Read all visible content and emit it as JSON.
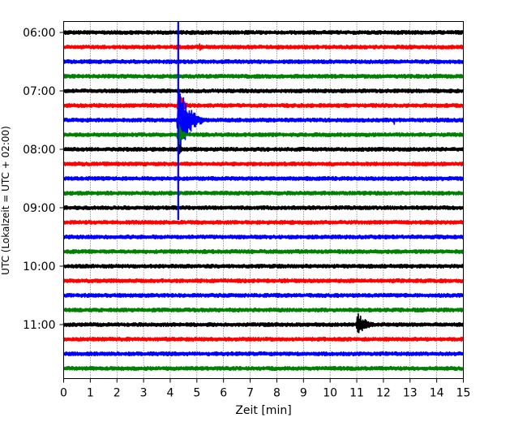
{
  "chart_data": {
    "type": "line",
    "title": "",
    "xlabel": "Zeit  [min]",
    "ylabel": "UTC (Lokalzeit = UTC + 02:00)",
    "xlim": [
      0,
      15
    ],
    "x_ticks": [
      0,
      1,
      2,
      3,
      4,
      5,
      6,
      7,
      8,
      9,
      10,
      11,
      12,
      13,
      14,
      15
    ],
    "x_tick_labels": [
      "0",
      "1",
      "2",
      "3",
      "4",
      "5",
      "6",
      "7",
      "8",
      "9",
      "10",
      "11",
      "12",
      "13",
      "14",
      "15"
    ],
    "y_tick_labels": [
      "06:00",
      "07:00",
      "08:00",
      "09:00",
      "10:00",
      "11:00"
    ],
    "y_ticks": [
      "06:00",
      "07:00",
      "08:00",
      "09:00",
      "10:00",
      "11:00"
    ],
    "trace_interval_min": 15,
    "trace_start": "06:00",
    "trace_count": 24,
    "grid": true,
    "grid_axis": "x",
    "trace_colors": [
      "#000000",
      "#ff0000",
      "#0000ff",
      "#008000"
    ],
    "events": [
      {
        "trace": "06:15",
        "time_min": 5.1,
        "amplitude": 0.25,
        "duration_min": 0.6
      },
      {
        "trace": "07:30",
        "time_min": 4.3,
        "amplitude": 3.0,
        "duration_min": 1.0
      },
      {
        "trace": "07:15",
        "time_min": 4.3,
        "amplitude": 1.2,
        "duration_min": 0.5
      },
      {
        "trace": "07:45",
        "time_min": 4.3,
        "amplitude": 1.0,
        "duration_min": 0.4
      },
      {
        "trace": "08:00",
        "time_min": 4.3,
        "amplitude": 0.6,
        "duration_min": 0.3
      },
      {
        "trace": "07:30",
        "time_min": 12.4,
        "amplitude": 0.4,
        "duration_min": 0.1
      },
      {
        "trace": "07:30",
        "time_min": 14.0,
        "amplitude": 0.35,
        "duration_min": 0.1
      },
      {
        "trace": "08:30",
        "time_min": 14.2,
        "amplitude": 0.2,
        "duration_min": 0.1
      },
      {
        "trace": "11:00",
        "time_min": 11.0,
        "amplitude": 0.9,
        "duration_min": 1.0
      },
      {
        "trace": "10:15",
        "time_min": 8.4,
        "amplitude": 0.2,
        "duration_min": 0.1
      }
    ],
    "vertical_marker": {
      "time_min": 4.3,
      "color": "#0000ff",
      "from": "06:00",
      "to": "09:00"
    }
  }
}
